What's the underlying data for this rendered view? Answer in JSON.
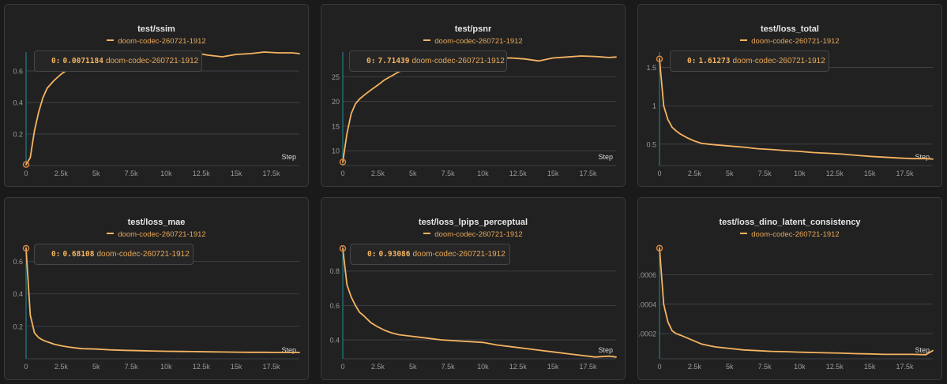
{
  "colors": {
    "line": "#f5b461",
    "cursor": "#1f8f9a",
    "grid": "#3e4147",
    "tick": "#9a9a9a",
    "background": "#212121"
  },
  "x_tick_labels": [
    "0",
    "2.5k",
    "5k",
    "7.5k",
    "10k",
    "12.5k",
    "15k",
    "17.5k"
  ],
  "chart_data": [
    {
      "type": "line",
      "title": "test/ssim",
      "legend": "doom-codec-260721-1912",
      "xlabel": "Step",
      "ylabel": "",
      "xlim": [
        0,
        19500
      ],
      "ylim": [
        0,
        0.72
      ],
      "yticks": [
        0.2,
        0.4,
        0.6
      ],
      "ytick_labels": [
        "0.2",
        "0.4",
        "0.6"
      ],
      "tooltip": {
        "step_label": "0:",
        "value_label": "0.0071184",
        "run": "doom-codec-260721-1912"
      },
      "series": [
        {
          "x": [
            0,
            300,
            600,
            900,
            1200,
            1500,
            2000,
            2500,
            3000,
            3500,
            4000,
            5000,
            6000,
            7000,
            8000,
            9000,
            10000,
            11000,
            12000,
            13000,
            14000,
            15000,
            16000,
            17000,
            18000,
            19000,
            19500
          ],
          "y": [
            0.007,
            0.05,
            0.22,
            0.34,
            0.43,
            0.49,
            0.54,
            0.58,
            0.61,
            0.63,
            0.65,
            0.67,
            0.68,
            0.69,
            0.7,
            0.705,
            0.71,
            0.71,
            0.715,
            0.7,
            0.69,
            0.705,
            0.71,
            0.72,
            0.715,
            0.715,
            0.71
          ]
        }
      ]
    },
    {
      "type": "line",
      "title": "test/psnr",
      "legend": "doom-codec-260721-1912",
      "xlabel": "Step",
      "ylabel": "",
      "xlim": [
        0,
        19500
      ],
      "ylim": [
        7,
        30
      ],
      "yticks": [
        10,
        15,
        20,
        25
      ],
      "ytick_labels": [
        "10",
        "15",
        "20",
        "25"
      ],
      "tooltip": {
        "step_label": "0:",
        "value_label": "7.71439",
        "run": "doom-codec-260721-1912"
      },
      "series": [
        {
          "x": [
            0,
            300,
            600,
            900,
            1200,
            1500,
            2000,
            2500,
            3000,
            3500,
            4000,
            5000,
            6000,
            7000,
            8000,
            9000,
            10000,
            11000,
            12000,
            13000,
            14000,
            15000,
            16000,
            17000,
            18000,
            19000,
            19500
          ],
          "y": [
            7.71,
            13.5,
            17.5,
            19.5,
            20.5,
            21.2,
            22.3,
            23.3,
            24.4,
            25.2,
            26,
            27,
            27.7,
            28.1,
            28.3,
            28.5,
            28.6,
            28.7,
            28.8,
            28.6,
            28.2,
            28.8,
            29.0,
            29.2,
            29.1,
            28.9,
            29.0
          ]
        }
      ]
    },
    {
      "type": "line",
      "title": "test/loss_total",
      "legend": "doom-codec-260721-1912",
      "xlabel": "Step",
      "ylabel": "",
      "xlim": [
        0,
        19500
      ],
      "ylim": [
        0.22,
        1.7
      ],
      "yticks": [
        0.5,
        1,
        1.5
      ],
      "ytick_labels": [
        "0.5",
        "1",
        "1.5"
      ],
      "tooltip": {
        "step_label": "0:",
        "value_label": "1.61273",
        "run": "doom-codec-260721-1912"
      },
      "series": [
        {
          "x": [
            0,
            300,
            600,
            900,
            1200,
            1500,
            2000,
            2500,
            3000,
            3500,
            4000,
            5000,
            6000,
            7000,
            8000,
            9000,
            10000,
            11000,
            12000,
            13000,
            14000,
            15000,
            16000,
            17000,
            18000,
            19000,
            19500
          ],
          "y": [
            1.61,
            1.0,
            0.82,
            0.72,
            0.67,
            0.63,
            0.58,
            0.54,
            0.51,
            0.5,
            0.49,
            0.475,
            0.46,
            0.44,
            0.43,
            0.415,
            0.405,
            0.39,
            0.38,
            0.37,
            0.355,
            0.34,
            0.33,
            0.32,
            0.31,
            0.31,
            0.305
          ]
        }
      ]
    },
    {
      "type": "line",
      "title": "test/loss_mae",
      "legend": "doom-codec-260721-1912",
      "xlabel": "Step",
      "ylabel": "",
      "xlim": [
        0,
        19500
      ],
      "ylim": [
        0,
        0.7
      ],
      "yticks": [
        0.2,
        0.4,
        0.6
      ],
      "ytick_labels": [
        "0.2",
        "0.4",
        "0.6"
      ],
      "tooltip": {
        "step_label": "0:",
        "value_label": "0.68108",
        "run": "doom-codec-260721-1912"
      },
      "series": [
        {
          "x": [
            0,
            300,
            600,
            900,
            1200,
            1500,
            2000,
            2500,
            3000,
            3500,
            4000,
            5000,
            6000,
            7000,
            8000,
            9000,
            10000,
            11000,
            12000,
            13000,
            14000,
            15000,
            16000,
            17000,
            18000,
            19000,
            19500
          ],
          "y": [
            0.681,
            0.27,
            0.16,
            0.13,
            0.115,
            0.105,
            0.09,
            0.08,
            0.073,
            0.067,
            0.062,
            0.06,
            0.055,
            0.052,
            0.05,
            0.048,
            0.046,
            0.045,
            0.044,
            0.043,
            0.042,
            0.041,
            0.04,
            0.04,
            0.039,
            0.039,
            0.039
          ]
        }
      ]
    },
    {
      "type": "line",
      "title": "test/loss_lpips_perceptual",
      "legend": "doom-codec-260721-1912",
      "xlabel": "Step",
      "ylabel": "",
      "xlim": [
        0,
        19500
      ],
      "ylim": [
        0.29,
        0.95
      ],
      "yticks": [
        0.4,
        0.6,
        0.8
      ],
      "ytick_labels": [
        "0.4",
        "0.6",
        "0.8"
      ],
      "tooltip": {
        "step_label": "0:",
        "value_label": "0.93086",
        "run": "doom-codec-260721-1912"
      },
      "series": [
        {
          "x": [
            0,
            300,
            600,
            900,
            1200,
            1500,
            2000,
            2500,
            3000,
            3500,
            4000,
            5000,
            6000,
            7000,
            8000,
            9000,
            10000,
            11000,
            12000,
            13000,
            14000,
            15000,
            16000,
            17000,
            18000,
            19000,
            19500
          ],
          "y": [
            0.931,
            0.72,
            0.65,
            0.6,
            0.56,
            0.54,
            0.5,
            0.475,
            0.455,
            0.44,
            0.43,
            0.42,
            0.41,
            0.4,
            0.395,
            0.39,
            0.385,
            0.37,
            0.36,
            0.35,
            0.34,
            0.33,
            0.32,
            0.31,
            0.3,
            0.305,
            0.3
          ]
        }
      ]
    },
    {
      "type": "line",
      "title": "test/loss_dino_latent_consistency",
      "legend": "doom-codec-260721-1912",
      "xlabel": "Step",
      "ylabel": "",
      "xlim": [
        0,
        19500
      ],
      "ylim": [
        3e-05,
        0.0008
      ],
      "yticks": [
        0.0002,
        0.0004,
        0.0006
      ],
      "ytick_labels": [
        "0.0002",
        "0.0004",
        "0.0006"
      ],
      "tooltip": {
        "step_label": "",
        "value_label": "",
        "run": ""
      },
      "series": [
        {
          "x": [
            0,
            300,
            600,
            900,
            1200,
            1500,
            2000,
            2500,
            3000,
            3500,
            4000,
            5000,
            6000,
            7000,
            8000,
            9000,
            10000,
            11000,
            12000,
            13000,
            14000,
            15000,
            16000,
            17000,
            18000,
            19000,
            19500
          ],
          "y": [
            0.00078,
            0.0004,
            0.00028,
            0.00022,
            0.0002,
            0.00019,
            0.00017,
            0.00015,
            0.00013,
            0.00012,
            0.00011,
            0.0001,
            9e-05,
            8.5e-05,
            8e-05,
            7.8e-05,
            7.5e-05,
            7.2e-05,
            7e-05,
            6.8e-05,
            6.5e-05,
            6.3e-05,
            6e-05,
            6e-05,
            6e-05,
            5.8e-05,
            8.5e-05
          ]
        }
      ]
    }
  ]
}
